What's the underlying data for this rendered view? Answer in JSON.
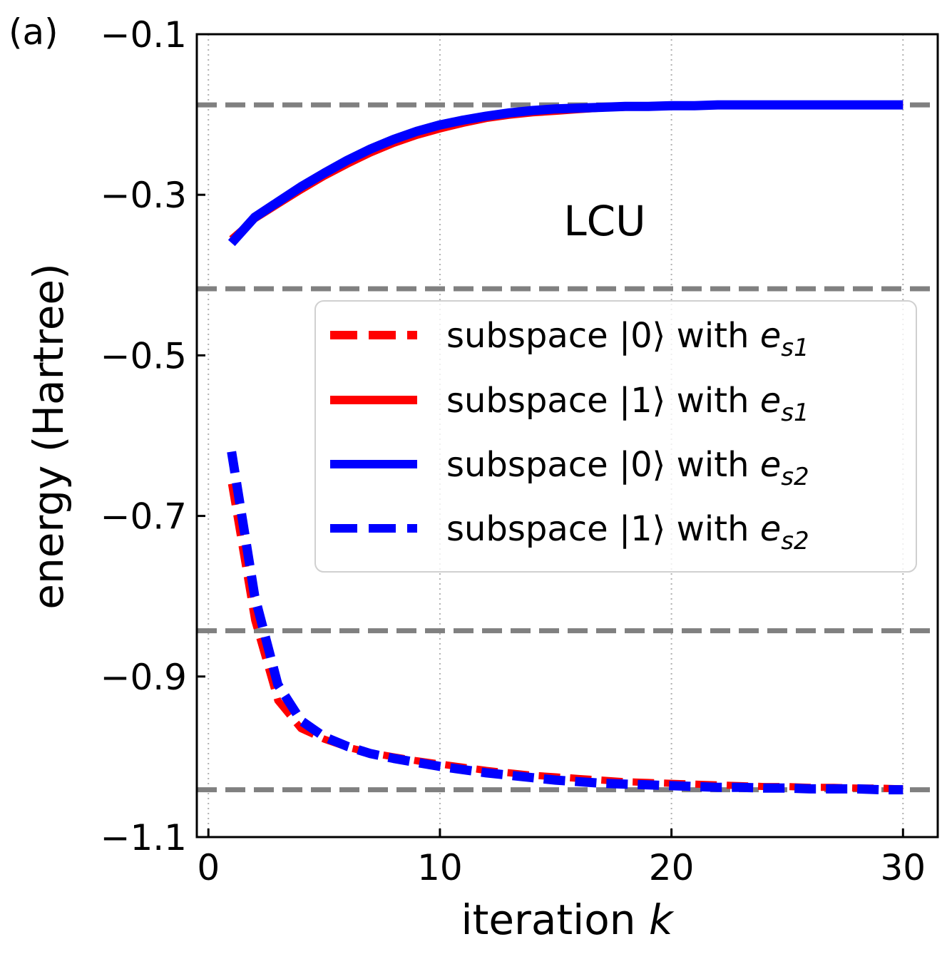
{
  "panel_label": "(a)",
  "chart_data": {
    "type": "line",
    "xlabel_main": "iteration ",
    "xlabel_var": "k",
    "ylabel": "energy (Hartree)",
    "xlim": [
      -0.5,
      31.5
    ],
    "ylim": [
      -1.1,
      -0.1
    ],
    "xticks": [
      0,
      10,
      20,
      30
    ],
    "xtick_labels": [
      "0",
      "10",
      "20",
      "30"
    ],
    "yticks": [
      -0.1,
      -0.3,
      -0.5,
      -0.7,
      -0.9,
      -1.1
    ],
    "ytick_labels": [
      "−0.1",
      "−0.3",
      "−0.5",
      "−0.7",
      "−0.9",
      "−1.1"
    ],
    "grid": "vertical dotted",
    "annotation": "LCU",
    "reference_lines": [
      -0.188,
      -0.417,
      -0.843,
      -1.041
    ],
    "colors": {
      "red": "#ff0000",
      "blue": "#0000ff",
      "reference": "#808080"
    },
    "legend_placement": "center-right",
    "x": [
      1,
      2,
      3,
      4,
      5,
      6,
      7,
      8,
      9,
      10,
      11,
      12,
      13,
      14,
      15,
      16,
      17,
      18,
      19,
      20,
      21,
      22,
      23,
      24,
      25,
      26,
      27,
      28,
      29,
      30
    ],
    "series": [
      {
        "name": "subspace |0⟩ with e_s1",
        "label_main": "subspace |0⟩ with ",
        "label_var": "e",
        "label_sub": "s1",
        "color": "#ff0000",
        "style": "dashed",
        "values": [
          -0.66,
          -0.83,
          -0.93,
          -0.965,
          -0.978,
          -0.988,
          -0.995,
          -1.0,
          -1.005,
          -1.009,
          -1.013,
          -1.017,
          -1.02,
          -1.023,
          -1.025,
          -1.027,
          -1.029,
          -1.031,
          -1.032,
          -1.033,
          -1.034,
          -1.035,
          -1.036,
          -1.037,
          -1.037,
          -1.038,
          -1.038,
          -1.039,
          -1.039,
          -1.04
        ]
      },
      {
        "name": "subspace |1⟩ with e_s1",
        "label_main": "subspace |1⟩ with ",
        "label_var": "e",
        "label_sub": "s1",
        "color": "#ff0000",
        "style": "solid",
        "values": [
          -0.355,
          -0.33,
          -0.312,
          -0.294,
          -0.277,
          -0.262,
          -0.248,
          -0.236,
          -0.226,
          -0.218,
          -0.211,
          -0.205,
          -0.201,
          -0.198,
          -0.196,
          -0.194,
          -0.192,
          -0.191,
          -0.19,
          -0.19,
          -0.189,
          -0.189,
          -0.189,
          -0.188,
          -0.188,
          -0.188,
          -0.188,
          -0.188,
          -0.188,
          -0.188
        ]
      },
      {
        "name": "subspace |0⟩ with e_s2",
        "label_main": "subspace |0⟩ with ",
        "label_var": "e",
        "label_sub": "s2",
        "color": "#0000ff",
        "style": "solid",
        "values": [
          -0.36,
          -0.328,
          -0.309,
          -0.29,
          -0.273,
          -0.257,
          -0.243,
          -0.231,
          -0.221,
          -0.213,
          -0.207,
          -0.202,
          -0.198,
          -0.195,
          -0.193,
          -0.192,
          -0.191,
          -0.19,
          -0.19,
          -0.189,
          -0.189,
          -0.188,
          -0.188,
          -0.188,
          -0.188,
          -0.188,
          -0.188,
          -0.188,
          -0.188,
          -0.188
        ]
      },
      {
        "name": "subspace |1⟩ with e_s2",
        "label_main": "subspace |1⟩ with ",
        "label_var": "e",
        "label_sub": "s2",
        "color": "#0000ff",
        "style": "dashed",
        "values": [
          -0.62,
          -0.8,
          -0.91,
          -0.955,
          -0.975,
          -0.987,
          -0.996,
          -1.002,
          -1.007,
          -1.012,
          -1.016,
          -1.02,
          -1.023,
          -1.026,
          -1.029,
          -1.031,
          -1.033,
          -1.034,
          -1.035,
          -1.036,
          -1.037,
          -1.038,
          -1.038,
          -1.039,
          -1.039,
          -1.04,
          -1.04,
          -1.04,
          -1.041,
          -1.041
        ]
      }
    ]
  }
}
